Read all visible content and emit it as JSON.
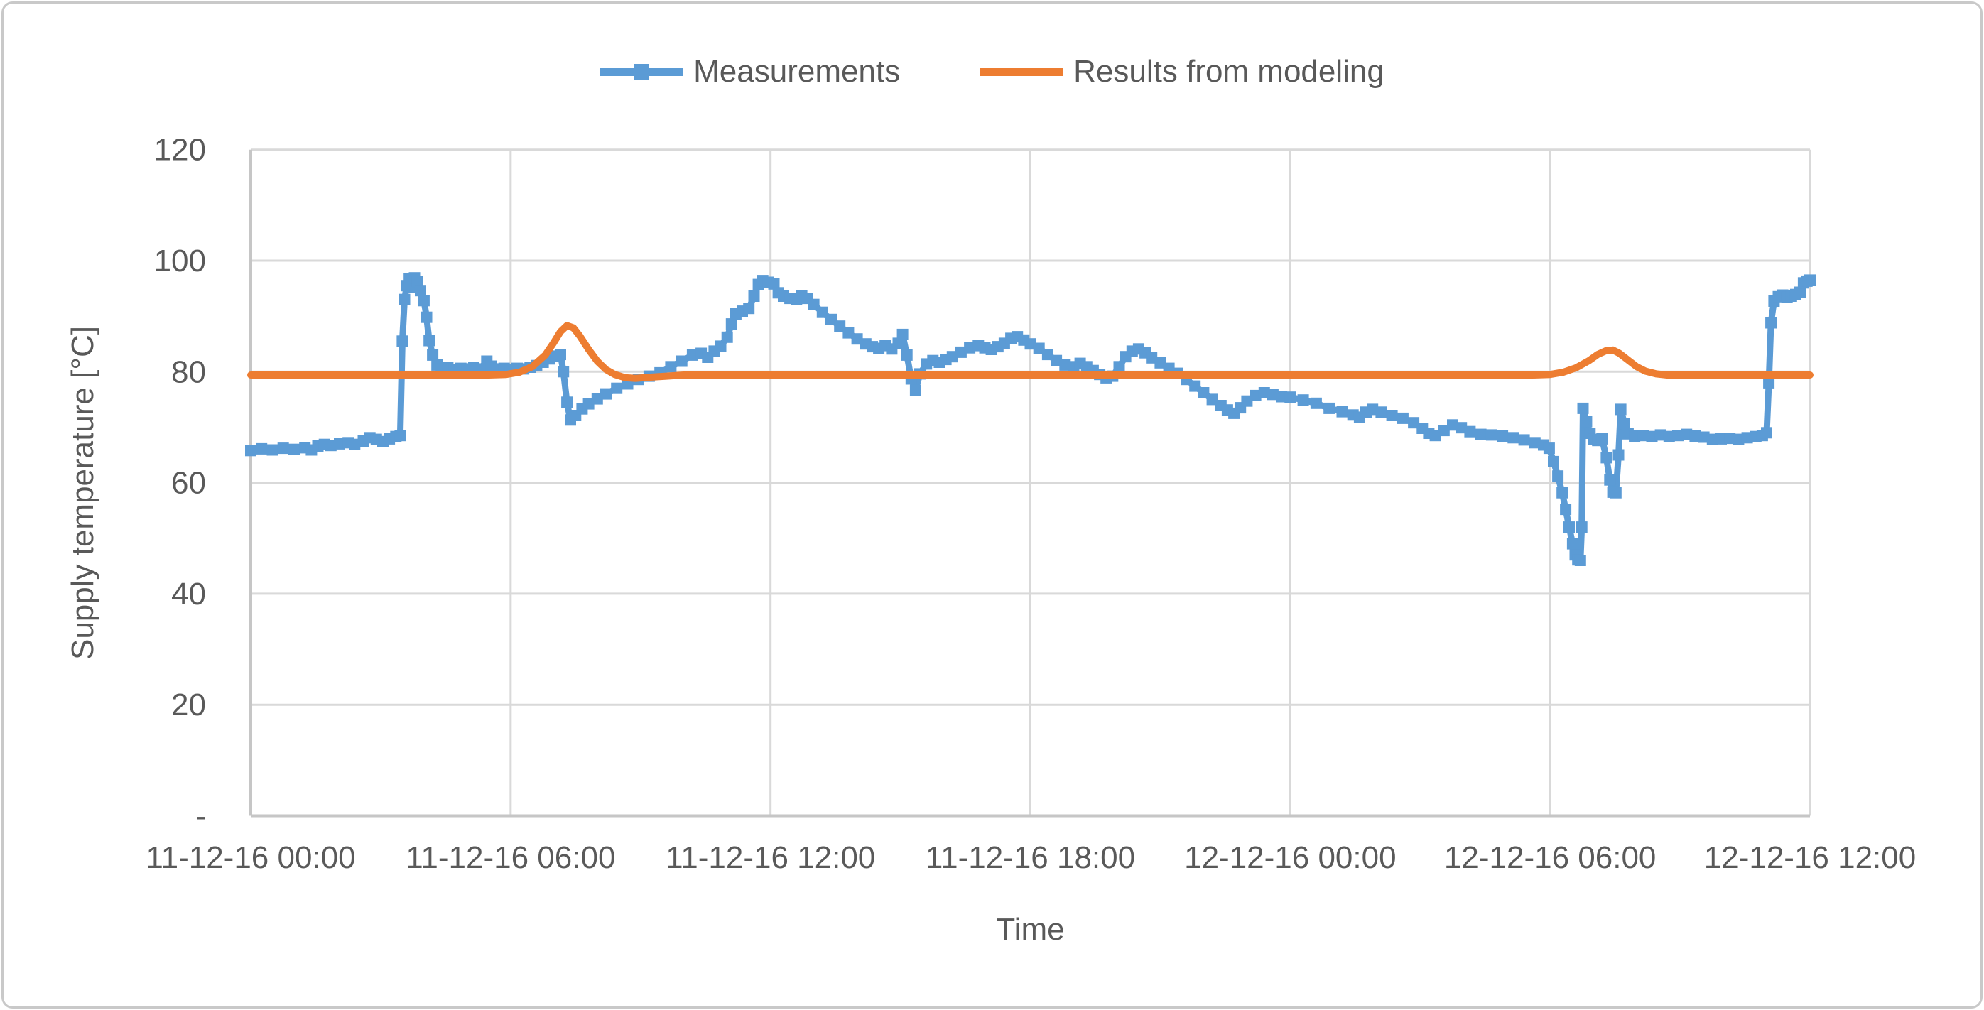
{
  "frame": {
    "background": "#FFFFFF",
    "border_color": "#C9C9C9",
    "grid_color": "#D9D9D9",
    "axis_color": "#C6C6C6",
    "text_color": "#595959"
  },
  "chart_data": {
    "type": "line",
    "title": "",
    "xlabel": "Time",
    "ylabel": "Supply temperature  [°C]",
    "x_unit": "hours since 11-12-16 00:00",
    "xlim_hours": [
      0,
      36
    ],
    "ylim": [
      0,
      120
    ],
    "grid": true,
    "legend_position": "top-center",
    "x_ticks": [
      {
        "hour": 0,
        "label": "11-12-16 00:00"
      },
      {
        "hour": 6,
        "label": "11-12-16 06:00"
      },
      {
        "hour": 12,
        "label": "11-12-16 12:00"
      },
      {
        "hour": 18,
        "label": "11-12-16 18:00"
      },
      {
        "hour": 24,
        "label": "12-12-16 00:00"
      },
      {
        "hour": 30,
        "label": "12-12-16 06:00"
      },
      {
        "hour": 36,
        "label": "12-12-16 12:00"
      }
    ],
    "y_ticks": [
      {
        "value": 0,
        "label": "-"
      },
      {
        "value": 20,
        "label": "20"
      },
      {
        "value": 40,
        "label": "40"
      },
      {
        "value": 60,
        "label": "60"
      },
      {
        "value": 80,
        "label": "80"
      },
      {
        "value": 100,
        "label": "100"
      },
      {
        "value": 120,
        "label": "120"
      }
    ],
    "series": [
      {
        "name": "Measurements",
        "color": "#5B9BD5",
        "marker": "square",
        "points": [
          [
            0,
            65.8
          ],
          [
            0.25,
            66.1
          ],
          [
            0.5,
            65.9
          ],
          [
            0.75,
            66.2
          ],
          [
            1.0,
            66.0
          ],
          [
            1.25,
            66.3
          ],
          [
            1.4,
            65.9
          ],
          [
            1.55,
            66.6
          ],
          [
            1.7,
            66.9
          ],
          [
            1.85,
            66.7
          ],
          [
            2.05,
            67.0
          ],
          [
            2.25,
            67.2
          ],
          [
            2.4,
            66.9
          ],
          [
            2.6,
            67.5
          ],
          [
            2.75,
            68.1
          ],
          [
            2.9,
            67.8
          ],
          [
            3.05,
            67.4
          ],
          [
            3.2,
            67.9
          ],
          [
            3.35,
            68.3
          ],
          [
            3.45,
            68.5
          ],
          [
            3.5,
            85.5
          ],
          [
            3.55,
            93.0
          ],
          [
            3.6,
            95.5
          ],
          [
            3.66,
            96.8
          ],
          [
            3.72,
            95.2
          ],
          [
            3.78,
            96.9
          ],
          [
            3.85,
            96.2
          ],
          [
            3.92,
            94.6
          ],
          [
            4.0,
            92.8
          ],
          [
            4.06,
            89.8
          ],
          [
            4.12,
            85.6
          ],
          [
            4.2,
            83.0
          ],
          [
            4.3,
            81.2
          ],
          [
            4.4,
            80.5
          ],
          [
            4.55,
            80.7
          ],
          [
            4.7,
            80.4
          ],
          [
            4.85,
            80.6
          ],
          [
            5.0,
            80.5
          ],
          [
            5.15,
            80.7
          ],
          [
            5.3,
            80.5
          ],
          [
            5.45,
            81.9
          ],
          [
            5.55,
            81.0
          ],
          [
            5.7,
            80.5
          ],
          [
            5.85,
            80.6
          ],
          [
            6.0,
            80.4
          ],
          [
            6.15,
            80.6
          ],
          [
            6.3,
            80.5
          ],
          [
            6.45,
            80.8
          ],
          [
            6.6,
            81.1
          ],
          [
            6.75,
            81.7
          ],
          [
            6.9,
            82.3
          ],
          [
            7.05,
            82.8
          ],
          [
            7.15,
            83.1
          ],
          [
            7.22,
            80.0
          ],
          [
            7.3,
            74.5
          ],
          [
            7.38,
            71.3
          ],
          [
            7.5,
            72.1
          ],
          [
            7.65,
            73.3
          ],
          [
            7.8,
            74.2
          ],
          [
            8.0,
            75.1
          ],
          [
            8.2,
            76.0
          ],
          [
            8.45,
            77.0
          ],
          [
            8.7,
            77.8
          ],
          [
            8.95,
            78.6
          ],
          [
            9.2,
            79.2
          ],
          [
            9.45,
            79.8
          ],
          [
            9.7,
            80.9
          ],
          [
            9.95,
            81.9
          ],
          [
            10.2,
            83.0
          ],
          [
            10.4,
            83.3
          ],
          [
            10.55,
            82.6
          ],
          [
            10.7,
            83.7
          ],
          [
            10.85,
            84.6
          ],
          [
            11.0,
            86.2
          ],
          [
            11.1,
            88.6
          ],
          [
            11.2,
            90.4
          ],
          [
            11.35,
            90.9
          ],
          [
            11.5,
            91.4
          ],
          [
            11.62,
            93.6
          ],
          [
            11.72,
            95.7
          ],
          [
            11.82,
            96.4
          ],
          [
            11.95,
            96.1
          ],
          [
            12.08,
            95.8
          ],
          [
            12.18,
            94.2
          ],
          [
            12.3,
            93.6
          ],
          [
            12.45,
            93.2
          ],
          [
            12.6,
            93.0
          ],
          [
            12.72,
            93.7
          ],
          [
            12.85,
            93.2
          ],
          [
            13.0,
            92.1
          ],
          [
            13.2,
            90.7
          ],
          [
            13.4,
            89.4
          ],
          [
            13.6,
            88.2
          ],
          [
            13.8,
            87.0
          ],
          [
            14.0,
            85.9
          ],
          [
            14.2,
            85.0
          ],
          [
            14.35,
            84.5
          ],
          [
            14.5,
            84.2
          ],
          [
            14.65,
            84.7
          ],
          [
            14.8,
            84.1
          ],
          [
            14.95,
            85.1
          ],
          [
            15.05,
            86.7
          ],
          [
            15.15,
            83.0
          ],
          [
            15.25,
            78.7
          ],
          [
            15.35,
            76.6
          ],
          [
            15.45,
            79.6
          ],
          [
            15.6,
            81.4
          ],
          [
            15.75,
            82.0
          ],
          [
            15.9,
            81.7
          ],
          [
            16.05,
            82.2
          ],
          [
            16.2,
            82.7
          ],
          [
            16.4,
            83.5
          ],
          [
            16.6,
            84.3
          ],
          [
            16.8,
            84.7
          ],
          [
            16.95,
            84.3
          ],
          [
            17.1,
            84.0
          ],
          [
            17.25,
            84.5
          ],
          [
            17.4,
            85.1
          ],
          [
            17.55,
            86.0
          ],
          [
            17.7,
            86.3
          ],
          [
            17.85,
            85.7
          ],
          [
            18.0,
            85.0
          ],
          [
            18.2,
            84.2
          ],
          [
            18.4,
            83.1
          ],
          [
            18.6,
            82.0
          ],
          [
            18.8,
            81.2
          ],
          [
            19.0,
            80.9
          ],
          [
            19.15,
            81.5
          ],
          [
            19.3,
            80.9
          ],
          [
            19.45,
            80.2
          ],
          [
            19.6,
            79.5
          ],
          [
            19.75,
            78.9
          ],
          [
            19.9,
            79.2
          ],
          [
            20.05,
            80.9
          ],
          [
            20.2,
            82.7
          ],
          [
            20.35,
            83.7
          ],
          [
            20.5,
            84.1
          ],
          [
            20.65,
            83.4
          ],
          [
            20.8,
            82.5
          ],
          [
            21.0,
            81.6
          ],
          [
            21.2,
            80.6
          ],
          [
            21.4,
            79.7
          ],
          [
            21.6,
            78.6
          ],
          [
            21.8,
            77.4
          ],
          [
            22.0,
            76.2
          ],
          [
            22.2,
            75.0
          ],
          [
            22.4,
            73.9
          ],
          [
            22.55,
            73.1
          ],
          [
            22.7,
            72.5
          ],
          [
            22.85,
            73.5
          ],
          [
            23.0,
            74.7
          ],
          [
            23.2,
            75.7
          ],
          [
            23.4,
            76.2
          ],
          [
            23.6,
            75.9
          ],
          [
            23.8,
            75.5
          ],
          [
            24.0,
            75.4
          ],
          [
            24.3,
            74.9
          ],
          [
            24.6,
            74.3
          ],
          [
            24.9,
            73.4
          ],
          [
            25.2,
            72.8
          ],
          [
            25.45,
            72.2
          ],
          [
            25.6,
            71.8
          ],
          [
            25.75,
            72.7
          ],
          [
            25.9,
            73.2
          ],
          [
            26.1,
            72.7
          ],
          [
            26.35,
            72.1
          ],
          [
            26.6,
            71.6
          ],
          [
            26.85,
            70.8
          ],
          [
            27.05,
            69.8
          ],
          [
            27.2,
            68.9
          ],
          [
            27.35,
            68.5
          ],
          [
            27.55,
            69.4
          ],
          [
            27.75,
            70.4
          ],
          [
            27.95,
            69.9
          ],
          [
            28.15,
            69.2
          ],
          [
            28.4,
            68.7
          ],
          [
            28.65,
            68.6
          ],
          [
            28.9,
            68.4
          ],
          [
            29.15,
            68.1
          ],
          [
            29.4,
            67.7
          ],
          [
            29.65,
            67.2
          ],
          [
            29.85,
            66.8
          ],
          [
            29.98,
            66.2
          ],
          [
            30.08,
            63.8
          ],
          [
            30.18,
            61.2
          ],
          [
            30.28,
            58.2
          ],
          [
            30.36,
            55.2
          ],
          [
            30.44,
            52.0
          ],
          [
            30.52,
            49.0
          ],
          [
            30.58,
            47.0
          ],
          [
            30.64,
            46.1
          ],
          [
            30.7,
            46.0
          ],
          [
            30.73,
            52.0
          ],
          [
            30.76,
            73.4
          ],
          [
            30.84,
            71.0
          ],
          [
            30.92,
            68.9
          ],
          [
            31.0,
            67.8
          ],
          [
            31.1,
            67.6
          ],
          [
            31.2,
            67.9
          ],
          [
            31.3,
            64.5
          ],
          [
            31.38,
            60.5
          ],
          [
            31.45,
            58.3
          ],
          [
            31.52,
            58.2
          ],
          [
            31.58,
            65.0
          ],
          [
            31.63,
            73.2
          ],
          [
            31.72,
            70.6
          ],
          [
            31.8,
            68.8
          ],
          [
            31.95,
            68.4
          ],
          [
            32.15,
            68.5
          ],
          [
            32.35,
            68.3
          ],
          [
            32.55,
            68.6
          ],
          [
            32.75,
            68.3
          ],
          [
            32.95,
            68.5
          ],
          [
            33.15,
            68.7
          ],
          [
            33.35,
            68.4
          ],
          [
            33.55,
            68.2
          ],
          [
            33.75,
            67.8
          ],
          [
            33.95,
            67.9
          ],
          [
            34.15,
            68.0
          ],
          [
            34.35,
            67.8
          ],
          [
            34.55,
            68.1
          ],
          [
            34.75,
            68.3
          ],
          [
            34.9,
            68.5
          ],
          [
            35.0,
            69.0
          ],
          [
            35.05,
            78.0
          ],
          [
            35.1,
            88.8
          ],
          [
            35.17,
            92.7
          ],
          [
            35.27,
            93.5
          ],
          [
            35.37,
            93.8
          ],
          [
            35.47,
            93.4
          ],
          [
            35.57,
            93.6
          ],
          [
            35.67,
            93.9
          ],
          [
            35.77,
            94.3
          ],
          [
            35.85,
            96.0
          ],
          [
            35.93,
            96.3
          ],
          [
            36.0,
            96.5
          ]
        ]
      },
      {
        "name": "Results from modeling",
        "color": "#ED7D31",
        "marker": "none",
        "points": [
          [
            0,
            79.4
          ],
          [
            2.0,
            79.4
          ],
          [
            4.0,
            79.4
          ],
          [
            5.5,
            79.4
          ],
          [
            5.9,
            79.5
          ],
          [
            6.2,
            79.9
          ],
          [
            6.5,
            80.9
          ],
          [
            6.8,
            83.0
          ],
          [
            7.0,
            85.3
          ],
          [
            7.15,
            87.2
          ],
          [
            7.3,
            88.3
          ],
          [
            7.45,
            87.9
          ],
          [
            7.6,
            86.4
          ],
          [
            7.8,
            84.0
          ],
          [
            8.0,
            81.9
          ],
          [
            8.2,
            80.4
          ],
          [
            8.4,
            79.5
          ],
          [
            8.65,
            78.9
          ],
          [
            8.9,
            78.8
          ],
          [
            9.2,
            79.0
          ],
          [
            9.6,
            79.2
          ],
          [
            10.0,
            79.4
          ],
          [
            12.0,
            79.4
          ],
          [
            16.0,
            79.4
          ],
          [
            20.0,
            79.4
          ],
          [
            24.0,
            79.4
          ],
          [
            28.0,
            79.4
          ],
          [
            29.6,
            79.4
          ],
          [
            30.0,
            79.5
          ],
          [
            30.3,
            79.9
          ],
          [
            30.6,
            80.7
          ],
          [
            30.9,
            82.0
          ],
          [
            31.1,
            83.1
          ],
          [
            31.3,
            83.8
          ],
          [
            31.45,
            83.9
          ],
          [
            31.6,
            83.3
          ],
          [
            31.8,
            82.1
          ],
          [
            32.0,
            80.9
          ],
          [
            32.2,
            80.1
          ],
          [
            32.45,
            79.6
          ],
          [
            32.7,
            79.4
          ],
          [
            33.5,
            79.4
          ],
          [
            34.5,
            79.4
          ],
          [
            36.0,
            79.4
          ]
        ]
      }
    ]
  }
}
